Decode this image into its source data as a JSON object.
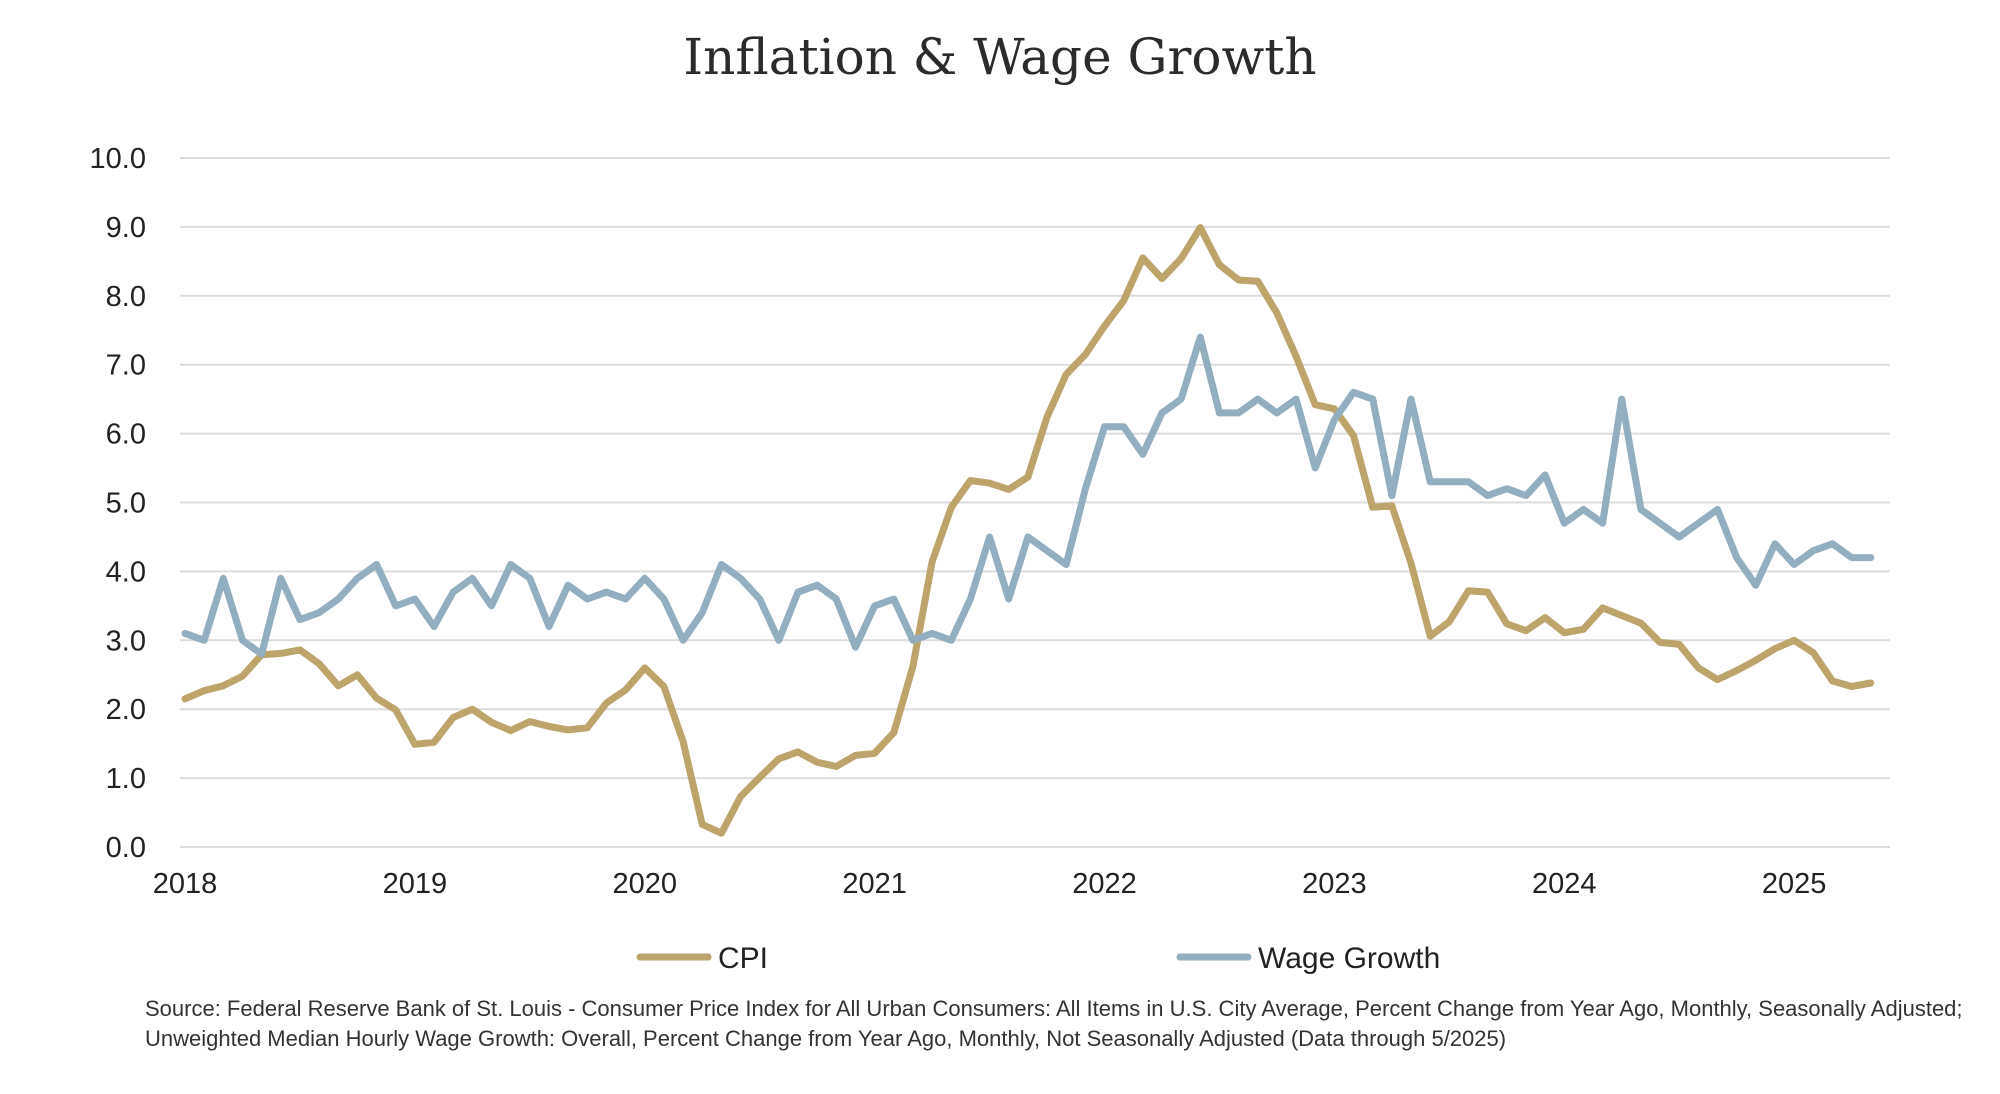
{
  "chart_data": {
    "type": "line",
    "title": "Inflation & Wage Growth",
    "xlabel": "",
    "ylabel": "",
    "xlim": [
      2018.0,
      2025.417
    ],
    "ylim": [
      0,
      10
    ],
    "yticks": [
      "0.0",
      "1.0",
      "2.0",
      "3.0",
      "4.0",
      "5.0",
      "6.0",
      "7.0",
      "8.0",
      "9.0",
      "10.0"
    ],
    "xticks": [
      "2018",
      "2019",
      "2020",
      "2021",
      "2022",
      "2023",
      "2024",
      "2025"
    ],
    "grid": true,
    "legend_position": "bottom",
    "x_start": "2018-01",
    "x_step": "monthly",
    "series": [
      {
        "name": "CPI",
        "color": "#bca46b",
        "values": [
          2.15,
          2.27,
          2.34,
          2.48,
          2.79,
          2.81,
          2.86,
          2.66,
          2.34,
          2.5,
          2.16,
          1.99,
          1.49,
          1.52,
          1.88,
          2.0,
          1.81,
          1.69,
          1.82,
          1.75,
          1.7,
          1.73,
          2.09,
          2.28,
          2.6,
          2.33,
          1.53,
          0.33,
          0.2,
          0.73,
          1.01,
          1.28,
          1.38,
          1.23,
          1.17,
          1.33,
          1.36,
          1.66,
          2.62,
          4.14,
          4.93,
          5.32,
          5.28,
          5.19,
          5.37,
          6.24,
          6.86,
          7.15,
          7.56,
          7.93,
          8.55,
          8.25,
          8.54,
          8.99,
          8.45,
          8.23,
          8.21,
          7.75,
          7.12,
          6.42,
          6.36,
          5.97,
          4.93,
          4.95,
          4.12,
          3.06,
          3.27,
          3.72,
          3.7,
          3.24,
          3.14,
          3.33,
          3.11,
          3.16,
          3.47,
          3.36,
          3.25,
          2.97,
          2.94,
          2.6,
          2.43,
          2.56,
          2.71,
          2.88,
          3.0,
          2.82,
          2.41,
          2.33,
          2.38
        ]
      },
      {
        "name": "Wage Growth",
        "color": "#93aebe",
        "values": [
          3.1,
          3.0,
          3.9,
          3.0,
          2.8,
          3.9,
          3.3,
          3.4,
          3.6,
          3.9,
          4.1,
          3.5,
          3.6,
          3.2,
          3.7,
          3.9,
          3.5,
          4.1,
          3.9,
          3.2,
          3.8,
          3.6,
          3.7,
          3.6,
          3.9,
          3.6,
          3.0,
          3.4,
          4.1,
          3.9,
          3.6,
          3.0,
          3.7,
          3.8,
          3.6,
          2.9,
          3.5,
          3.6,
          3.0,
          3.1,
          3.0,
          3.6,
          4.5,
          3.6,
          4.5,
          4.3,
          4.1,
          5.2,
          6.1,
          6.1,
          5.7,
          6.3,
          6.5,
          7.4,
          6.3,
          6.3,
          6.5,
          6.3,
          6.5,
          5.5,
          6.2,
          6.6,
          6.5,
          5.1,
          6.5,
          5.3,
          5.3,
          5.3,
          5.1,
          5.2,
          5.1,
          5.4,
          4.7,
          4.9,
          4.7,
          6.5,
          4.9,
          4.7,
          4.5,
          4.7,
          4.9,
          4.2,
          3.8,
          4.4,
          4.1,
          4.3,
          4.4,
          4.2,
          4.2
        ]
      }
    ],
    "source_lines": [
      "Source: Federal Reserve Bank of St. Louis - Consumer Price Index for All Urban Consumers: All Items in U.S. City Average, Percent Change from Year Ago, Monthly, Seasonally Adjusted;",
      "Unweighted Median Hourly Wage Growth: Overall, Percent Change from Year Ago, Monthly, Not Seasonally Adjusted (Data through 5/2025)"
    ]
  }
}
